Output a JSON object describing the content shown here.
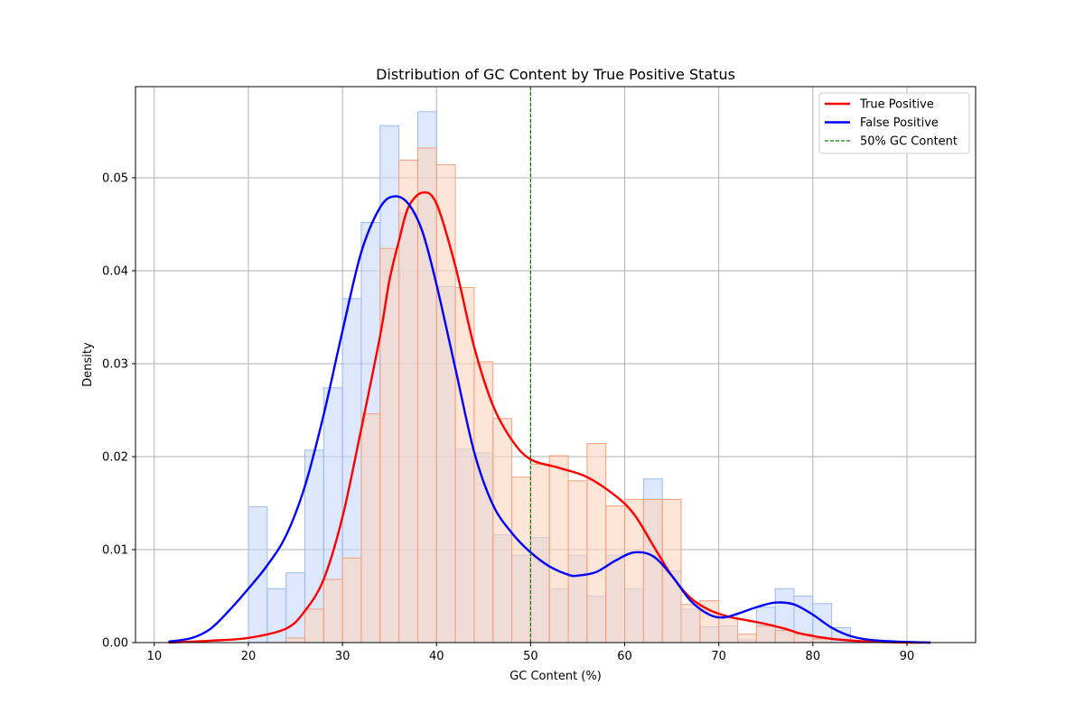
{
  "chart_data": {
    "type": "histogram+kde",
    "title": "Distribution of GC Content by True Positive Status",
    "xlabel": "GC Content (%)",
    "ylabel": "Density",
    "xlim": [
      8.0,
      97.3
    ],
    "ylim": [
      0,
      0.0598
    ],
    "x_ticks": [
      10,
      20,
      30,
      40,
      50,
      60,
      70,
      80,
      90
    ],
    "y_ticks": [
      0.0,
      0.01,
      0.02,
      0.03,
      0.04,
      0.05
    ],
    "y_tick_labels": [
      "0.00",
      "0.01",
      "0.02",
      "0.03",
      "0.04",
      "0.05"
    ],
    "grid": true,
    "legend_position": "top-right",
    "colors": {
      "true_positive_line": "#ff0000",
      "false_positive_line": "#0000ff",
      "true_positive_fill": "#fbd3bd",
      "true_positive_edge": "#f2a37e",
      "false_positive_fill": "#c8d8fb",
      "false_positive_edge": "#9fbaf0",
      "reference_line": "#008000",
      "grid": "#b0b0b0"
    },
    "histograms": [
      {
        "name": "False Positive",
        "bin_edges": [
          20,
          22,
          24,
          26,
          28,
          30,
          32,
          34,
          36,
          38,
          40,
          42,
          44,
          46,
          48,
          50,
          52,
          54,
          56,
          58,
          60,
          62,
          64,
          66,
          68,
          70,
          72,
          74,
          76,
          78,
          80,
          82,
          84
        ],
        "densities": [
          0.0146,
          0.0058,
          0.0075,
          0.0207,
          0.0274,
          0.037,
          0.0452,
          0.0556,
          0.0462,
          0.0571,
          0.0383,
          0.0208,
          0.0204,
          0.0116,
          0.0094,
          0.0113,
          0.0058,
          0.0094,
          0.005,
          0.0094,
          0.0058,
          0.0176,
          0.0077,
          0.0036,
          0.0017,
          0.0018,
          0.0003,
          0.0038,
          0.0058,
          0.005,
          0.0042,
          0.0016
        ]
      },
      {
        "name": "True Positive",
        "bin_edges": [
          20,
          22,
          24,
          26,
          28,
          30,
          32,
          34,
          36,
          38,
          40,
          42,
          44,
          46,
          48,
          50,
          52,
          54,
          56,
          58,
          60,
          62,
          64,
          66,
          68,
          70,
          72,
          74,
          76,
          78,
          80,
          82,
          84
        ],
        "densities": [
          0.0,
          0.0,
          0.0005,
          0.0036,
          0.0068,
          0.0091,
          0.0246,
          0.0424,
          0.0519,
          0.0532,
          0.0514,
          0.0382,
          0.0302,
          0.0241,
          0.0178,
          0.0192,
          0.0201,
          0.0174,
          0.0214,
          0.0147,
          0.0154,
          0.0154,
          0.0154,
          0.0041,
          0.0045,
          0.0027,
          0.0009,
          0.0018,
          0.0013,
          0.0009,
          0.0004,
          0.0
        ]
      }
    ],
    "kde": [
      {
        "name": "True Positive",
        "x": [
          11.5,
          16,
          20,
          24,
          26,
          28,
          30,
          32,
          34,
          35,
          36,
          37,
          38.5,
          40,
          42,
          44,
          46,
          48,
          50,
          53,
          56,
          59,
          61,
          63,
          65,
          67,
          69,
          71,
          73,
          75,
          77,
          79,
          82,
          86,
          90,
          92.5
        ],
        "y": [
          0.0,
          0.0002,
          0.0005,
          0.0015,
          0.0034,
          0.0068,
          0.0135,
          0.023,
          0.033,
          0.039,
          0.0432,
          0.0468,
          0.0484,
          0.0472,
          0.0405,
          0.0318,
          0.0255,
          0.0218,
          0.0197,
          0.0188,
          0.0178,
          0.0158,
          0.0138,
          0.0105,
          0.0072,
          0.0048,
          0.0035,
          0.0028,
          0.0024,
          0.002,
          0.0015,
          0.0009,
          0.0004,
          0.0001,
          0.0,
          0.0
        ]
      },
      {
        "name": "False Positive",
        "x": [
          11.5,
          14,
          16,
          18,
          20,
          22,
          24,
          26,
          28,
          30,
          32,
          34,
          35.5,
          37,
          38.5,
          40,
          42,
          44,
          46,
          48,
          50,
          52,
          54,
          55,
          57,
          59,
          61,
          63,
          65,
          67,
          69,
          70.5,
          72,
          74,
          76,
          78,
          80,
          82,
          84,
          86,
          89,
          92.5
        ],
        "y": [
          0.0001,
          0.0005,
          0.0015,
          0.0035,
          0.0058,
          0.0083,
          0.0115,
          0.0168,
          0.0245,
          0.0335,
          0.042,
          0.0468,
          0.048,
          0.0472,
          0.0442,
          0.0385,
          0.0295,
          0.0205,
          0.0148,
          0.0118,
          0.0097,
          0.0082,
          0.0073,
          0.0072,
          0.0076,
          0.0088,
          0.0097,
          0.0093,
          0.0072,
          0.0045,
          0.003,
          0.0027,
          0.0031,
          0.0038,
          0.0043,
          0.0041,
          0.003,
          0.0016,
          0.0007,
          0.0003,
          0.0001,
          0.0
        ]
      }
    ],
    "reference_line": {
      "x": 50,
      "label": "50% GC Content"
    },
    "legend": [
      {
        "label": "True Positive",
        "style": "solid",
        "color": "#ff0000"
      },
      {
        "label": "False Positive",
        "style": "solid",
        "color": "#0000ff"
      },
      {
        "label": "50% GC Content",
        "style": "dashed",
        "color": "#008000"
      }
    ]
  }
}
